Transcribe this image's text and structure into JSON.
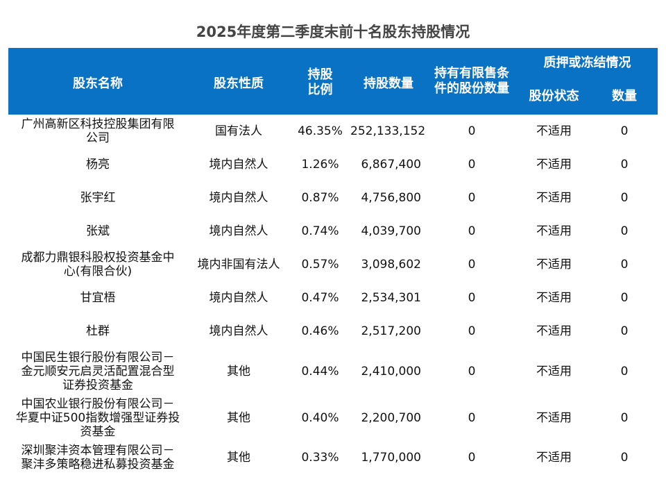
{
  "title": "2025年度第二季度末前十名股东持股情况",
  "headers": {
    "name": "股东名称",
    "nature": "股东性质",
    "ratio": "持股\n比例",
    "quantity": "持股数量",
    "restricted": "持有有限售条\n件的股份数量",
    "pledge_group": "质押或冻结情况",
    "pledge_status": "股份状态",
    "pledge_quantity": "数量"
  },
  "rows": [
    {
      "name": "广州高新区科技控股集团有限\n公司",
      "nature": "国有法人",
      "ratio": "46.35%",
      "quantity": "252,133,152",
      "restricted": "0",
      "status": "不适用",
      "pledged": "0"
    },
    {
      "name": "杨亮",
      "nature": "境内自然人",
      "ratio": "1.26%",
      "quantity": "6,867,400",
      "restricted": "0",
      "status": "不适用",
      "pledged": "0"
    },
    {
      "name": "张宇红",
      "nature": "境内自然人",
      "ratio": "0.87%",
      "quantity": "4,756,800",
      "restricted": "0",
      "status": "不适用",
      "pledged": "0"
    },
    {
      "name": "张斌",
      "nature": "境内自然人",
      "ratio": "0.74%",
      "quantity": "4,039,700",
      "restricted": "0",
      "status": "不适用",
      "pledged": "0"
    },
    {
      "name": "成都力鼎银科股权投资基金中\n心(有限合伙)",
      "nature": "境内非国有法人",
      "ratio": "0.57%",
      "quantity": "3,098,602",
      "restricted": "0",
      "status": "不适用",
      "pledged": "0"
    },
    {
      "name": "甘宜梧",
      "nature": "境内自然人",
      "ratio": "0.47%",
      "quantity": "2,534,301",
      "restricted": "0",
      "status": "不适用",
      "pledged": "0"
    },
    {
      "name": "杜群",
      "nature": "境内自然人",
      "ratio": "0.46%",
      "quantity": "2,517,200",
      "restricted": "0",
      "status": "不适用",
      "pledged": "0"
    },
    {
      "name": "中国民生银行股份有限公司－\n金元顺安元启灵活配置混合型\n证券投资基金",
      "nature": "其他",
      "ratio": "0.44%",
      "quantity": "2,410,000",
      "restricted": "0",
      "status": "不适用",
      "pledged": "0"
    },
    {
      "name": "中国农业银行股份有限公司－\n华夏中证500指数增强型证券投\n资基金",
      "nature": "其他",
      "ratio": "0.40%",
      "quantity": "2,200,700",
      "restricted": "0",
      "status": "不适用",
      "pledged": "0"
    },
    {
      "name": "深圳聚沣资本管理有限公司－\n聚沣多策略稳进私募投资基金",
      "nature": "其他",
      "ratio": "0.33%",
      "quantity": "1,770,000",
      "restricted": "0",
      "status": "不适用",
      "pledged": "0"
    }
  ],
  "colors": {
    "header_bg": "#0a72c4",
    "header_text": "#ffffff"
  }
}
